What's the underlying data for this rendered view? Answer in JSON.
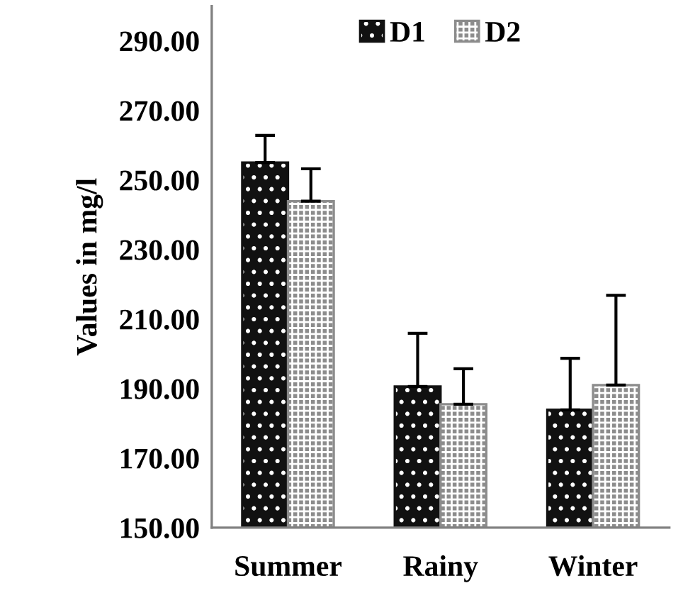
{
  "chart_data": {
    "type": "bar",
    "ylabel": "Values in mg/l",
    "categories": [
      "Summer",
      "Rainy",
      "Winter"
    ],
    "series": [
      {
        "name": "D1",
        "color": "#111111",
        "values": [
          255.0,
          190.6,
          183.9
        ],
        "errors": [
          [
            255.0,
            262.8
          ],
          [
            190.6,
            205.9
          ],
          [
            183.9,
            198.7
          ]
        ]
      },
      {
        "name": "D2",
        "color": "#8c8c8c",
        "values": [
          243.9,
          185.5,
          191.0
        ],
        "errors": [
          [
            243.9,
            253.2
          ],
          [
            185.5,
            195.7
          ],
          [
            191.0,
            216.8
          ]
        ]
      }
    ],
    "ylim": [
      150,
      300
    ],
    "yticks": [
      {
        "value": 150,
        "label": "150.00"
      },
      {
        "value": 170,
        "label": "170.00"
      },
      {
        "value": 190,
        "label": "190.00"
      },
      {
        "value": 210,
        "label": "210.00"
      },
      {
        "value": 230,
        "label": "230.00"
      },
      {
        "value": 250,
        "label": "250.00"
      },
      {
        "value": 270,
        "label": "270.00"
      },
      {
        "value": 290,
        "label": "290.00"
      }
    ],
    "grid": false,
    "legend": "top"
  }
}
